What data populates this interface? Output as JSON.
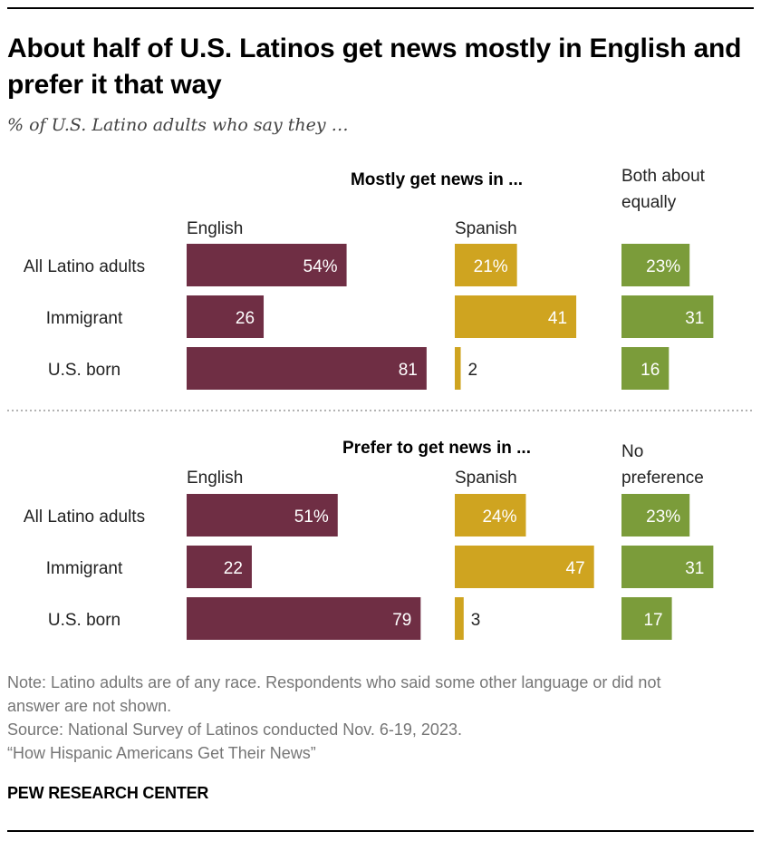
{
  "title": "About half of U.S. Latinos get news mostly in English and prefer it that way",
  "subtitle": "% of U.S. Latino adults who say they …",
  "note": "Note: Latino adults are of any race. Respondents who said some other language or did not answer are not shown.",
  "note_line1": "Note: Latino adults are of any race. Respondents who said some other language or did not",
  "note_line2": "answer are not shown.",
  "source": "Source: National Survey of Latinos conducted Nov. 6-19, 2023.",
  "report": "“How Hispanic Americans Get Their News”",
  "brand": "PEW RESEARCH CENTER",
  "colors": {
    "english": "#6f2e44",
    "spanish": "#cfa420",
    "third": "#7b9c3a"
  },
  "chart_data": [
    {
      "type": "bar",
      "title": "Mostly get news in ...",
      "categories": [
        "All Latino adults",
        "Immigrant",
        "U.S. born"
      ],
      "series": [
        {
          "name": "English",
          "values": [
            54,
            26,
            81
          ],
          "labels": [
            "54%",
            "26",
            "81"
          ]
        },
        {
          "name": "Spanish",
          "values": [
            21,
            41,
            2
          ],
          "labels": [
            "21%",
            "41",
            "2"
          ]
        },
        {
          "name": "Both about equally",
          "values": [
            23,
            31,
            16
          ],
          "labels": [
            "23%",
            "31",
            "16"
          ]
        }
      ]
    },
    {
      "type": "bar",
      "title": "Prefer to get news in ...",
      "categories": [
        "All Latino adults",
        "Immigrant",
        "U.S. born"
      ],
      "series": [
        {
          "name": "English",
          "values": [
            51,
            22,
            79
          ],
          "labels": [
            "51%",
            "22",
            "79"
          ]
        },
        {
          "name": "Spanish",
          "values": [
            24,
            47,
            3
          ],
          "labels": [
            "24%",
            "47",
            "3"
          ]
        },
        {
          "name": "No preference",
          "values": [
            23,
            31,
            17
          ],
          "labels": [
            "23%",
            "31",
            "17"
          ]
        }
      ]
    }
  ]
}
